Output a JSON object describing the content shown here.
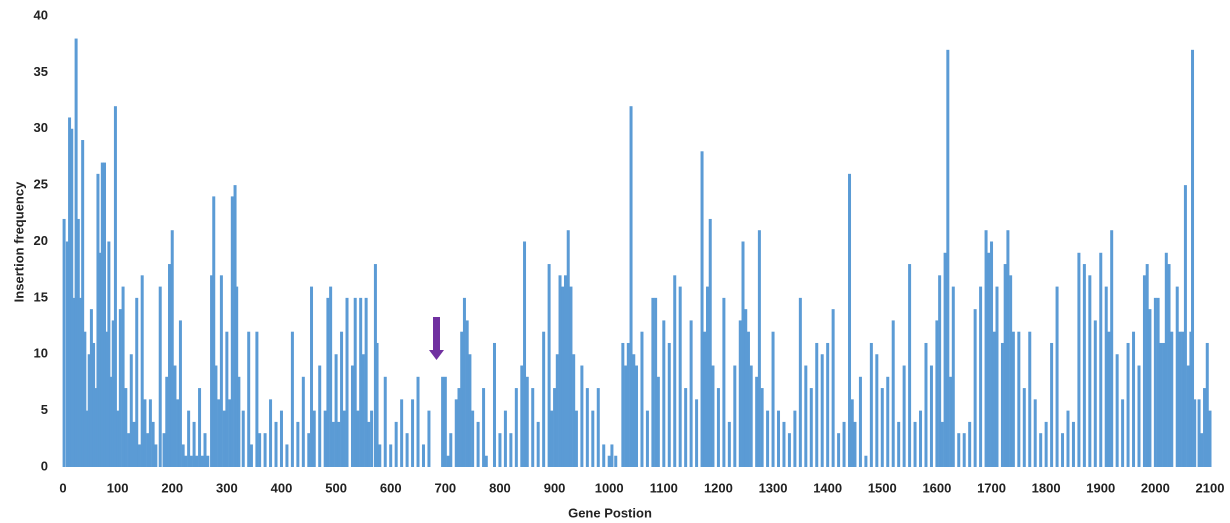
{
  "chart_data": {
    "type": "bar",
    "x_label": "Gene Postion",
    "y_label": "Insertion frequency",
    "color": "#5b9bd5",
    "x": [
      2,
      8,
      12,
      16,
      20,
      24,
      28,
      32,
      36,
      40,
      44,
      48,
      52,
      56,
      60,
      64,
      68,
      72,
      76,
      80,
      84,
      88,
      92,
      96,
      100,
      105,
      110,
      115,
      120,
      125,
      130,
      135,
      140,
      145,
      150,
      155,
      160,
      165,
      170,
      178,
      185,
      190,
      195,
      200,
      205,
      210,
      215,
      220,
      225,
      230,
      235,
      240,
      245,
      250,
      255,
      260,
      265,
      272,
      276,
      280,
      285,
      290,
      295,
      300,
      305,
      310,
      315,
      318,
      322,
      330,
      340,
      345,
      355,
      360,
      370,
      380,
      390,
      400,
      410,
      420,
      430,
      440,
      450,
      455,
      460,
      470,
      480,
      485,
      490,
      495,
      500,
      505,
      510,
      515,
      520,
      530,
      535,
      540,
      545,
      550,
      555,
      560,
      565,
      572,
      575,
      580,
      590,
      600,
      610,
      620,
      630,
      640,
      650,
      660,
      670,
      695,
      700,
      705,
      710,
      720,
      725,
      730,
      735,
      740,
      745,
      750,
      760,
      770,
      775,
      790,
      800,
      810,
      820,
      830,
      840,
      845,
      850,
      860,
      870,
      880,
      890,
      895,
      900,
      905,
      910,
      915,
      920,
      925,
      930,
      935,
      940,
      950,
      960,
      970,
      980,
      990,
      1000,
      1005,
      1012,
      1025,
      1030,
      1035,
      1040,
      1045,
      1050,
      1060,
      1070,
      1080,
      1085,
      1090,
      1100,
      1110,
      1120,
      1130,
      1140,
      1150,
      1160,
      1170,
      1175,
      1180,
      1185,
      1190,
      1200,
      1210,
      1220,
      1230,
      1240,
      1245,
      1250,
      1255,
      1260,
      1270,
      1275,
      1280,
      1290,
      1300,
      1310,
      1320,
      1330,
      1340,
      1350,
      1360,
      1370,
      1380,
      1390,
      1400,
      1410,
      1420,
      1430,
      1440,
      1445,
      1450,
      1460,
      1470,
      1480,
      1490,
      1500,
      1510,
      1520,
      1530,
      1540,
      1550,
      1560,
      1570,
      1580,
      1590,
      1600,
      1605,
      1610,
      1615,
      1620,
      1625,
      1630,
      1640,
      1650,
      1660,
      1670,
      1680,
      1690,
      1695,
      1700,
      1705,
      1710,
      1720,
      1725,
      1730,
      1735,
      1740,
      1750,
      1760,
      1770,
      1780,
      1790,
      1800,
      1810,
      1820,
      1830,
      1840,
      1850,
      1860,
      1870,
      1880,
      1890,
      1900,
      1910,
      1915,
      1920,
      1930,
      1940,
      1950,
      1960,
      1970,
      1980,
      1985,
      1990,
      2000,
      2005,
      2010,
      2015,
      2020,
      2025,
      2030,
      2040,
      2045,
      2050,
      2055,
      2060,
      2065,
      2068,
      2072,
      2080,
      2085,
      2090,
      2095,
      2100
    ],
    "values": [
      22,
      20,
      31,
      30,
      15,
      38,
      22,
      15,
      29,
      12,
      5,
      10,
      14,
      11,
      7,
      26,
      19,
      27,
      27,
      12,
      20,
      8,
      13,
      32,
      5,
      14,
      16,
      7,
      3,
      10,
      4,
      15,
      2,
      17,
      6,
      3,
      6,
      4,
      2,
      16,
      3,
      8,
      18,
      21,
      9,
      6,
      13,
      2,
      1,
      5,
      1,
      4,
      1,
      7,
      1,
      3,
      1,
      17,
      24,
      9,
      6,
      17,
      5,
      12,
      6,
      24,
      25,
      16,
      8,
      5,
      12,
      2,
      12,
      3,
      3,
      6,
      4,
      5,
      2,
      12,
      4,
      8,
      3,
      16,
      5,
      9,
      5,
      15,
      16,
      4,
      10,
      4,
      12,
      5,
      15,
      9,
      15,
      5,
      15,
      10,
      15,
      4,
      5,
      18,
      11,
      2,
      8,
      2,
      4,
      6,
      3,
      6,
      8,
      2,
      5,
      8,
      8,
      1,
      3,
      6,
      7,
      12,
      15,
      13,
      10,
      5,
      4,
      7,
      1,
      11,
      3,
      5,
      3,
      7,
      9,
      20,
      8,
      7,
      4,
      12,
      18,
      5,
      7,
      10,
      17,
      16,
      17,
      21,
      16,
      10,
      5,
      9,
      7,
      5,
      7,
      2,
      1,
      2,
      1,
      11,
      9,
      11,
      32,
      10,
      9,
      12,
      5,
      15,
      15,
      8,
      13,
      11,
      17,
      16,
      7,
      13,
      6,
      28,
      12,
      16,
      22,
      9,
      7,
      15,
      4,
      9,
      13,
      20,
      14,
      12,
      9,
      8,
      21,
      7,
      5,
      12,
      5,
      4,
      3,
      5,
      15,
      9,
      7,
      11,
      10,
      11,
      14,
      3,
      4,
      26,
      6,
      4,
      8,
      1,
      11,
      10,
      7,
      8,
      13,
      4,
      9,
      18,
      4,
      5,
      11,
      9,
      13,
      17,
      4,
      19,
      37,
      8,
      16,
      3,
      3,
      4,
      14,
      16,
      21,
      19,
      20,
      12,
      16,
      11,
      18,
      21,
      17,
      12,
      12,
      7,
      12,
      6,
      3,
      4,
      11,
      16,
      3,
      5,
      4,
      19,
      18,
      17,
      13,
      19,
      16,
      12,
      21,
      10,
      6,
      11,
      12,
      9,
      17,
      18,
      14,
      15,
      15,
      11,
      11,
      19,
      18,
      12,
      16,
      12,
      12,
      25,
      9,
      12,
      37,
      6,
      6,
      3,
      7,
      11,
      5
    ],
    "xlim": [
      0,
      2100
    ],
    "xticks": [
      0,
      100,
      200,
      300,
      400,
      500,
      600,
      700,
      800,
      900,
      1000,
      1100,
      1200,
      1300,
      1400,
      1500,
      1600,
      1700,
      1800,
      1900,
      2000,
      2100
    ],
    "ylim": [
      0,
      40
    ],
    "yticks": [
      0,
      5,
      10,
      15,
      20,
      25,
      30,
      35,
      40
    ]
  }
}
